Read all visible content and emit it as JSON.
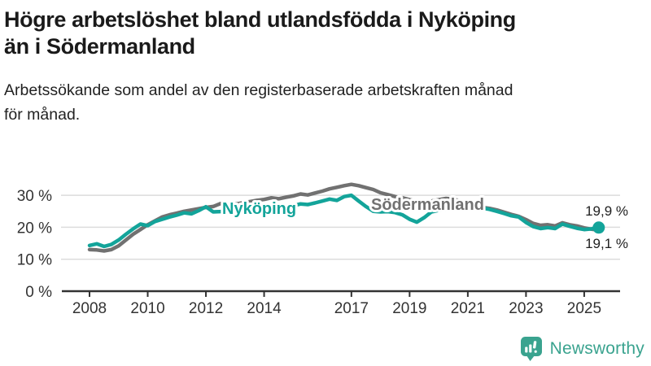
{
  "chart_data": {
    "type": "line",
    "title": "Högre arbetslöshet bland utlandsfödda i Nyköping\nän i Södermanland",
    "subtitle": "Arbetssökande som andel av den registerbaserade arbetskraften månad\nför månad.",
    "xlabel": "",
    "ylabel": "",
    "xlim": [
      2007.8,
      2026.2
    ],
    "ylim": [
      0,
      36
    ],
    "grid": true,
    "legend_position": "inline-labels",
    "x_start": 2008.0,
    "x_step": 0.25,
    "x_ticks": [
      2008,
      2010,
      2012,
      2014,
      2017,
      2019,
      2021,
      2023,
      2025
    ],
    "y_ticks": [
      0,
      10,
      20,
      30
    ],
    "y_tick_labels": [
      "0 %",
      "10 %",
      "20 %",
      "30 %"
    ],
    "series": [
      {
        "id": "sodermanland",
        "name": "Södermanland",
        "color": "#717171",
        "end_label": "19,1 %",
        "end_dot": false,
        "values": [
          13.0,
          12.9,
          12.6,
          13.0,
          14.2,
          16.0,
          17.8,
          19.3,
          20.8,
          22.0,
          23.2,
          23.9,
          24.4,
          25.0,
          25.4,
          25.8,
          26.2,
          26.5,
          27.4,
          27.0,
          27.2,
          27.6,
          28.0,
          28.4,
          28.7,
          29.2,
          28.9,
          29.4,
          29.8,
          30.4,
          30.1,
          30.7,
          31.3,
          32.0,
          32.5,
          33.0,
          33.4,
          33.0,
          32.4,
          31.8,
          30.8,
          30.2,
          29.6,
          29.2,
          28.6,
          28.2,
          28.0,
          28.2,
          28.6,
          29.0,
          28.8,
          28.2,
          27.5,
          26.8,
          26.2,
          25.9,
          25.4,
          24.7,
          24.0,
          23.4,
          22.4,
          21.2,
          20.6,
          20.8,
          20.4,
          21.4,
          20.8,
          20.4,
          19.8,
          19.4,
          19.1
        ]
      },
      {
        "id": "nykoping",
        "name": "Nyköping",
        "color": "#13a49a",
        "end_label": "19,9 %",
        "end_dot": true,
        "values": [
          14.3,
          14.8,
          14.0,
          14.6,
          16.0,
          17.8,
          19.5,
          21.0,
          20.5,
          21.8,
          22.5,
          23.2,
          23.8,
          24.5,
          24.2,
          25.2,
          26.4,
          24.8,
          24.9,
          25.1,
          25.0,
          24.7,
          25.0,
          25.4,
          25.7,
          26.1,
          26.4,
          26.2,
          26.7,
          27.3,
          27.1,
          27.6,
          28.2,
          28.8,
          28.4,
          29.6,
          30.0,
          28.2,
          26.5,
          25.0,
          24.8,
          24.9,
          24.6,
          23.9,
          22.5,
          21.6,
          23.0,
          24.8,
          25.3,
          25.5,
          25.6,
          25.8,
          25.9,
          25.8,
          26.0,
          25.6,
          25.0,
          24.3,
          23.6,
          23.2,
          21.5,
          20.2,
          19.6,
          19.9,
          19.6,
          21.0,
          20.3,
          19.7,
          19.3,
          19.5,
          19.9
        ]
      }
    ],
    "colors": {
      "grid": "#dcdcdc",
      "axis": "#333333",
      "tick_text": "#333333",
      "end_label_text": "#1f1f1f"
    }
  },
  "footer": {
    "brand": "Newsworthy",
    "brand_color": "#3aa38f",
    "logo_icon": "bar-chart-speech-bubble-icon"
  }
}
